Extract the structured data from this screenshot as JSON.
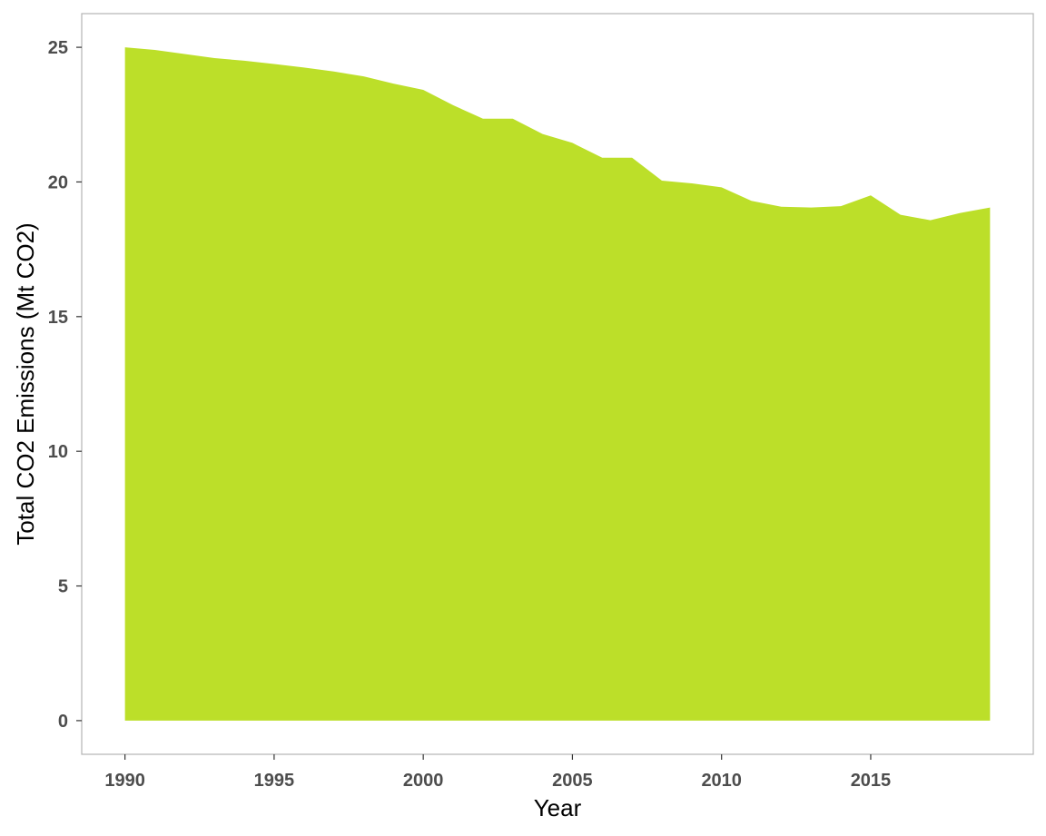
{
  "chart_data": {
    "type": "area",
    "title": "",
    "xlabel": "Year",
    "ylabel": "Total CO2 Emissions (Mt CO2)",
    "x": [
      1990,
      1991,
      1992,
      1993,
      1994,
      1995,
      1996,
      1997,
      1998,
      1999,
      2000,
      2001,
      2002,
      2003,
      2004,
      2005,
      2006,
      2007,
      2008,
      2009,
      2010,
      2011,
      2012,
      2013,
      2014,
      2015,
      2016,
      2017,
      2018,
      2019
    ],
    "series": [
      {
        "values": [
          25.0,
          24.9,
          24.75,
          24.6,
          24.5,
          24.38,
          24.25,
          24.1,
          23.92,
          23.65,
          23.42,
          22.85,
          22.35,
          22.35,
          21.78,
          21.45,
          20.9,
          20.9,
          20.05,
          19.95,
          19.8,
          19.3,
          19.08,
          19.05,
          19.1,
          19.5,
          18.78,
          18.58,
          18.85,
          19.05
        ]
      }
    ],
    "xticks": [
      1990,
      1995,
      2000,
      2005,
      2010,
      2015
    ],
    "yticks": [
      0,
      5,
      10,
      15,
      20,
      25
    ],
    "xlim": [
      1988.55,
      2020.45
    ],
    "ylim": [
      -1.25,
      26.25
    ],
    "grid": false,
    "legend": "none",
    "fill_color": "#bcdf29",
    "panel_border_color": "#b3b3b3"
  }
}
